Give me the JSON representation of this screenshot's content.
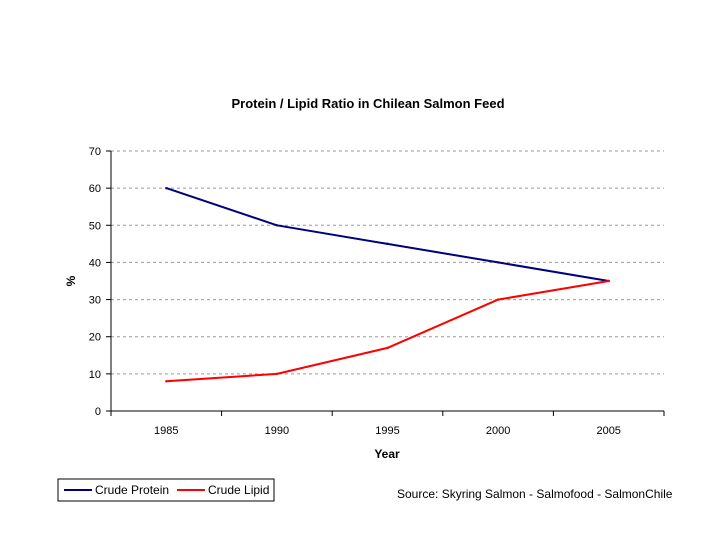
{
  "chart_data": {
    "type": "line",
    "title": "Protein / Lipid Ratio in Chilean Salmon Feed",
    "xlabel": "Year",
    "ylabel": "%",
    "categories": [
      "1985",
      "1990",
      "1995",
      "2000",
      "2005"
    ],
    "ylim": [
      0,
      70
    ],
    "yticks": [
      0,
      10,
      20,
      30,
      40,
      50,
      60,
      70
    ],
    "grid": true,
    "legend_position": "bottom-left",
    "series": [
      {
        "name": "Crude Protein",
        "color": "#000080",
        "values": [
          60,
          50,
          45,
          40,
          35
        ]
      },
      {
        "name": "Crude Lipid",
        "color": "#FF0000",
        "values": [
          8,
          10,
          17,
          30,
          35
        ]
      }
    ]
  },
  "source_note": "Source: Skyring Salmon -  Salmofood -  SalmonChile"
}
